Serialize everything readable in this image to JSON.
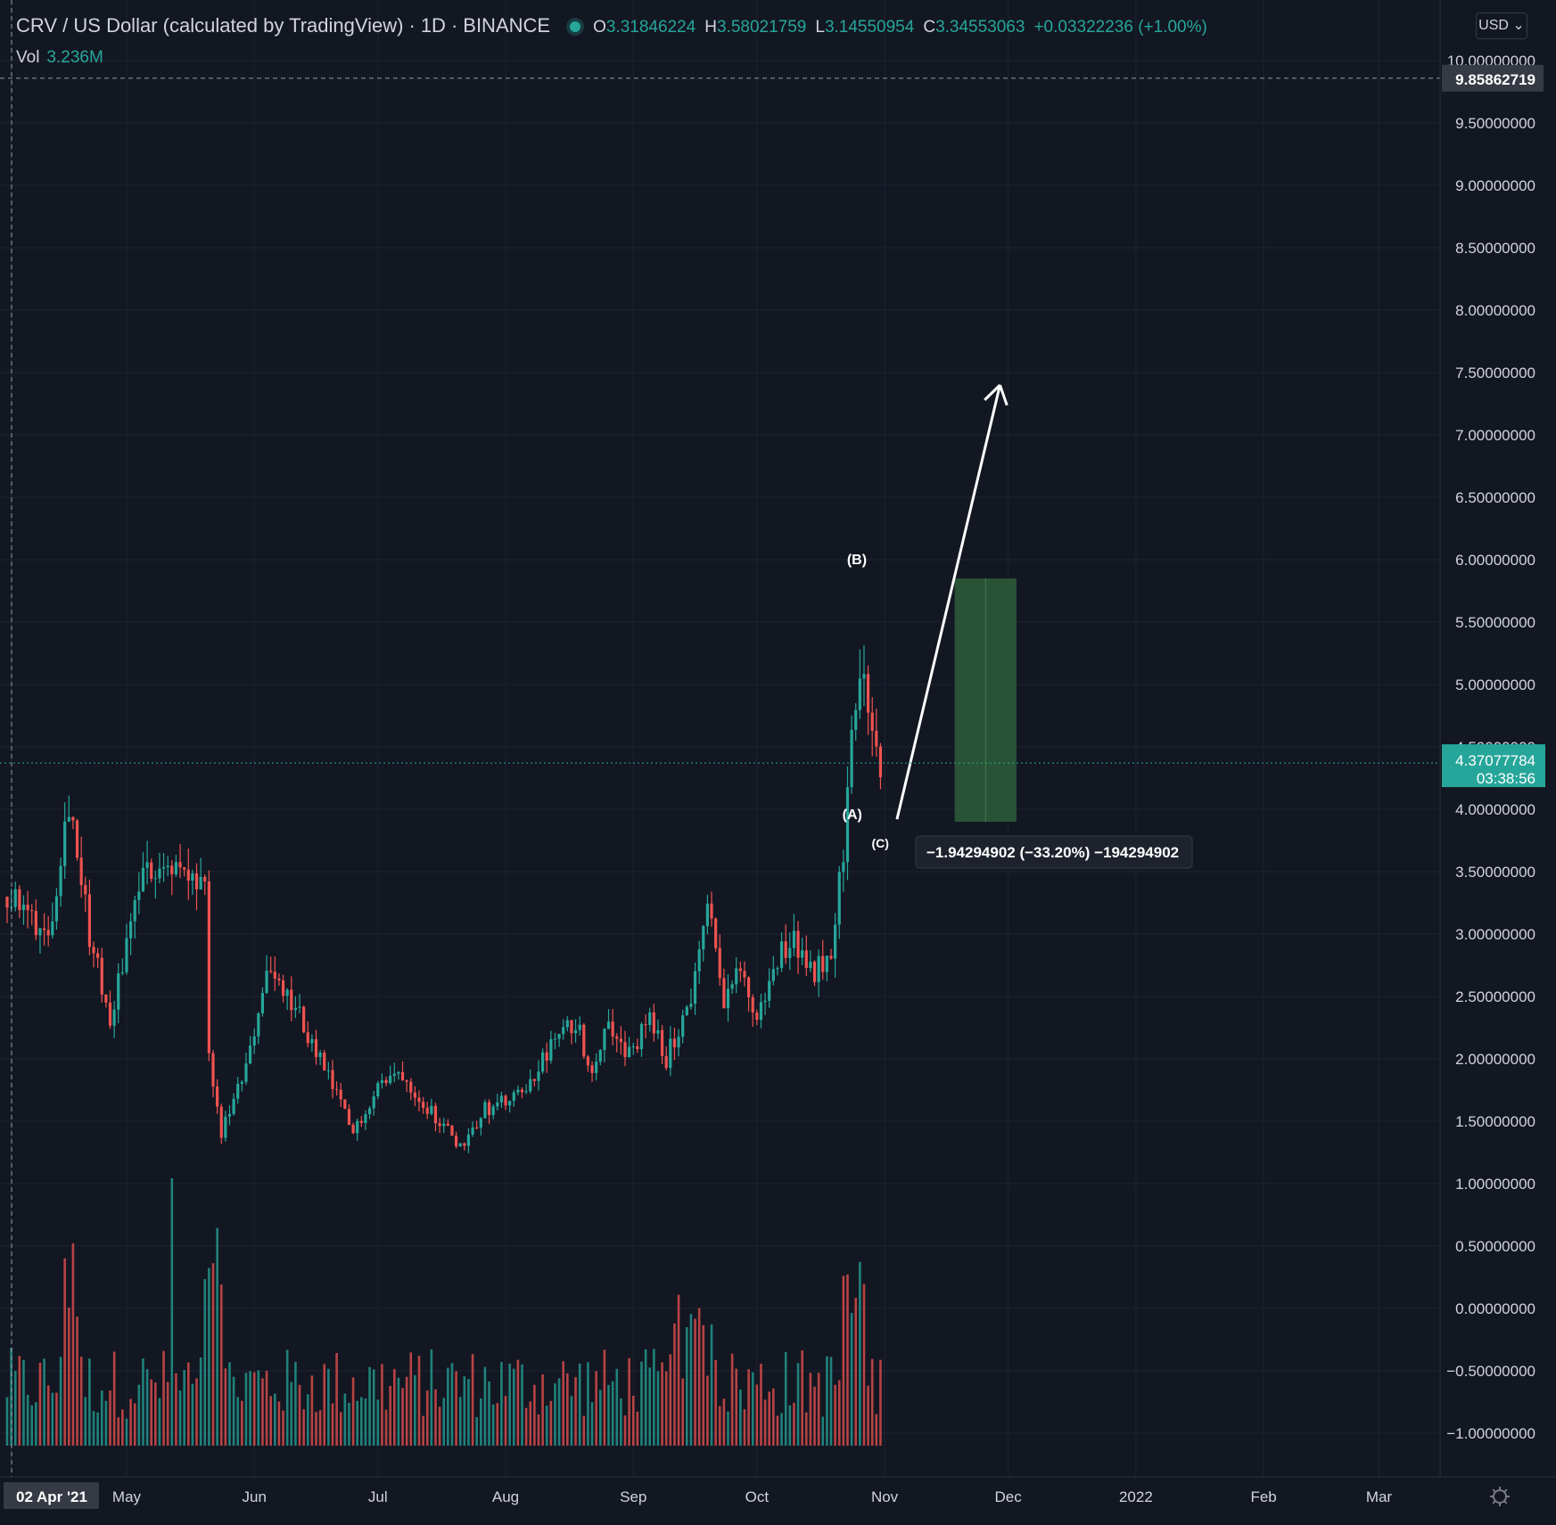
{
  "header": {
    "pair": "CRV / US Dollar (calculated by TradingView)",
    "interval": "1D",
    "exchange": "BINANCE",
    "o_label": "O",
    "o": "3.31846224",
    "h_label": "H",
    "h": "3.58021759",
    "l_label": "L",
    "l": "3.14550954",
    "c_label": "C",
    "c": "3.34553063",
    "change": "+0.03322236 (+1.00%)",
    "vol_label": "Vol",
    "vol_value": "3.236M",
    "currency": "USD"
  },
  "colors": {
    "background": "#131722",
    "up": "#26a69a",
    "down": "#ef5350",
    "grid": "#1f2330",
    "text": "#d1d4dc",
    "target_box": "#2e5e3a"
  },
  "chart_data": {
    "type": "candlestick",
    "y_axis": {
      "min": -1.2,
      "max": 10.3,
      "ticks": [
        "10.00000000",
        "9.50000000",
        "9.00000000",
        "8.50000000",
        "8.00000000",
        "7.50000000",
        "7.00000000",
        "6.50000000",
        "6.00000000",
        "5.50000000",
        "5.00000000",
        "4.50000000",
        "4.00000000",
        "3.50000000",
        "3.00000000",
        "2.50000000",
        "2.00000000",
        "1.50000000",
        "1.00000000",
        "0.50000000",
        "0.00000000",
        "−0.50000000",
        "−1.00000000"
      ],
      "tick_values": [
        10,
        9.5,
        9,
        8.5,
        8,
        7.5,
        7,
        6.5,
        6,
        5.5,
        5,
        4.5,
        4,
        3.5,
        3,
        2.5,
        2,
        1.5,
        1,
        0.5,
        0,
        -0.5,
        -1
      ]
    },
    "x_axis": {
      "start_day": 0,
      "end_day": 360,
      "labels": [
        {
          "text": "02 Apr '21",
          "day": 1,
          "highlight": true
        },
        {
          "text": "May",
          "day": 29
        },
        {
          "text": "Jun",
          "day": 60
        },
        {
          "text": "Jul",
          "day": 90
        },
        {
          "text": "Aug",
          "day": 121
        },
        {
          "text": "Sep",
          "day": 152
        },
        {
          "text": "Oct",
          "day": 182
        },
        {
          "text": "Nov",
          "day": 213
        },
        {
          "text": "Dec",
          "day": 243
        },
        {
          "text": "2022",
          "day": 274
        },
        {
          "text": "Feb",
          "day": 305
        },
        {
          "text": "Mar",
          "day": 333
        }
      ]
    },
    "key_points": [
      {
        "day": 0,
        "price": 3.3
      },
      {
        "day": 10,
        "price": 3.0
      },
      {
        "day": 15,
        "price": 4.1
      },
      {
        "day": 20,
        "price": 3.0
      },
      {
        "day": 25,
        "price": 2.3
      },
      {
        "day": 32,
        "price": 3.4
      },
      {
        "day": 38,
        "price": 3.6
      },
      {
        "day": 45,
        "price": 3.4
      },
      {
        "day": 48,
        "price": 3.3
      },
      {
        "day": 49,
        "price": 2.0
      },
      {
        "day": 52,
        "price": 1.4
      },
      {
        "day": 58,
        "price": 1.9
      },
      {
        "day": 63,
        "price": 2.7
      },
      {
        "day": 70,
        "price": 2.4
      },
      {
        "day": 80,
        "price": 1.7
      },
      {
        "day": 84,
        "price": 1.4
      },
      {
        "day": 90,
        "price": 1.8
      },
      {
        "day": 96,
        "price": 1.9
      },
      {
        "day": 100,
        "price": 1.7
      },
      {
        "day": 105,
        "price": 1.5
      },
      {
        "day": 110,
        "price": 1.3
      },
      {
        "day": 116,
        "price": 1.6
      },
      {
        "day": 125,
        "price": 1.7
      },
      {
        "day": 132,
        "price": 2.1
      },
      {
        "day": 138,
        "price": 2.3
      },
      {
        "day": 142,
        "price": 1.9
      },
      {
        "day": 146,
        "price": 2.35
      },
      {
        "day": 150,
        "price": 2.0
      },
      {
        "day": 156,
        "price": 2.3
      },
      {
        "day": 160,
        "price": 2.0
      },
      {
        "day": 166,
        "price": 2.5
      },
      {
        "day": 170,
        "price": 3.2
      },
      {
        "day": 174,
        "price": 2.5
      },
      {
        "day": 178,
        "price": 2.7
      },
      {
        "day": 182,
        "price": 2.3
      },
      {
        "day": 186,
        "price": 2.7
      },
      {
        "day": 190,
        "price": 3.0
      },
      {
        "day": 196,
        "price": 2.7
      },
      {
        "day": 200,
        "price": 2.9
      },
      {
        "day": 203,
        "price": 3.7
      },
      {
        "day": 205,
        "price": 4.8
      },
      {
        "day": 207,
        "price": 5.0
      },
      {
        "day": 209,
        "price": 4.8
      },
      {
        "day": 211,
        "price": 4.5
      },
      {
        "day": 212,
        "price": 4.37
      }
    ],
    "candles_last_day": 212,
    "last_price": "4.37077784",
    "last_price_value": 4.37077784,
    "countdown": "03:38:56",
    "crosshair_price": "9.85862719",
    "crosshair_value": 9.85862719,
    "annotations": {
      "wave_a": "(A)",
      "wave_b": "(B)",
      "wave_c": "(C)",
      "measure_label": "−1.94294902 (−33.20%) −194294902",
      "arrow_from": {
        "day": 216,
        "price": 3.92
      },
      "arrow_to": {
        "day": 241,
        "price": 7.4
      },
      "target_box": {
        "day_start": 230,
        "day_end": 245,
        "price_top": 5.85,
        "price_bottom": 3.9
      }
    }
  }
}
